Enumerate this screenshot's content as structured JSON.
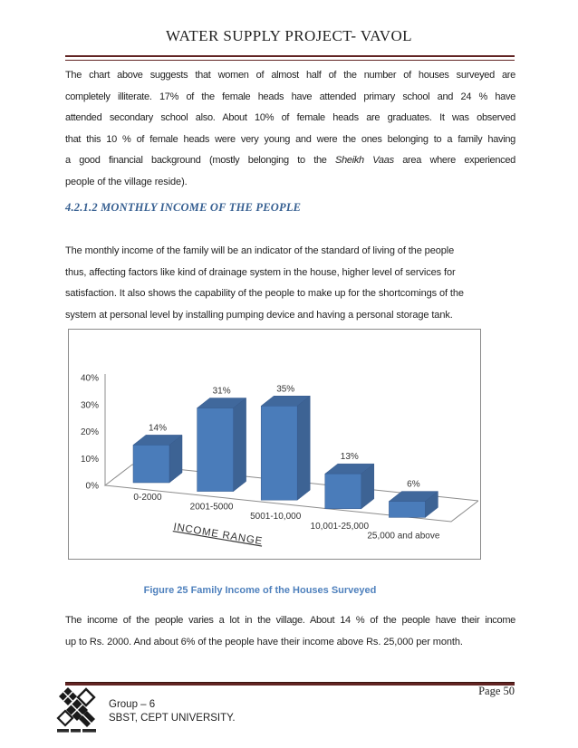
{
  "page": {
    "title": "WATER SUPPLY PROJECT- VAVOL",
    "page_label": "Page 50"
  },
  "paragraph1": {
    "lines": [
      "The chart above suggests that women of almost half of the number of houses surveyed are",
      "completely illiterate. 17% of the female heads have attended primary school and 24 % have",
      "attended secondary school also. About 10% of female heads are graduates. It was observed",
      "that this 10 % of female heads were very young and were the ones belonging to a family having"
    ],
    "line5": {
      "pre": "a good financial background (mostly belonging to the ",
      "italic": "Sheikh Vaas",
      "post": " area where experienced"
    },
    "line6": "people of the village reside)."
  },
  "section_heading": "4.2.1.2 MONTHLY INCOME OF THE PEOPLE",
  "paragraph2": {
    "lines": [
      "The monthly income of the family will be an indicator of the standard of living of the people",
      "thus, affecting factors like kind of drainage system in the house, higher level of services for",
      "satisfaction. It also shows the capability of the people to make up for the shortcomings of the",
      "system at personal level by installing pumping device and having a personal storage tank."
    ]
  },
  "figure": {
    "caption": "Figure 25 Family Income of the Houses Surveyed"
  },
  "paragraph3": {
    "lines": [
      "The income of the people varies a lot in the village. About 14 % of the people have their income",
      "up to Rs. 2000. And about 6% of the people have their income above Rs. 25,000 per month."
    ]
  },
  "footer": {
    "group": "Group – 6",
    "university": "SBST, CEPT UNIVERSITY.",
    "logo": "cept-university-logo"
  },
  "theme": {
    "rule_color": "#622423",
    "heading_blue": "#365F91",
    "caption_blue": "#4F81BD",
    "body_text": "#1f1f1f"
  },
  "chart_data": {
    "type": "bar",
    "style": "3d",
    "title": "",
    "xlabel": "INCOME RANGE",
    "ylabel": "",
    "categories": [
      "0-2000",
      "2001-5000",
      "5001-10,000",
      "10,001-25,000",
      "25,000 and above"
    ],
    "values": [
      14,
      31,
      35,
      13,
      6
    ],
    "data_labels": [
      "14%",
      "31%",
      "35%",
      "13%",
      "6%"
    ],
    "y_ticks": [
      0,
      10,
      20,
      30,
      40
    ],
    "y_tick_labels": [
      "0%",
      "10%",
      "20%",
      "30%",
      "40%"
    ],
    "ylim": [
      0,
      40
    ],
    "grid": false,
    "legend": "none",
    "bar_colors": {
      "front": "#4a7cba",
      "top": "#40689c",
      "side": "#3d6394",
      "edge": "#36598c"
    },
    "axis_color": "#8c8c8c",
    "label_color": "#333333"
  }
}
